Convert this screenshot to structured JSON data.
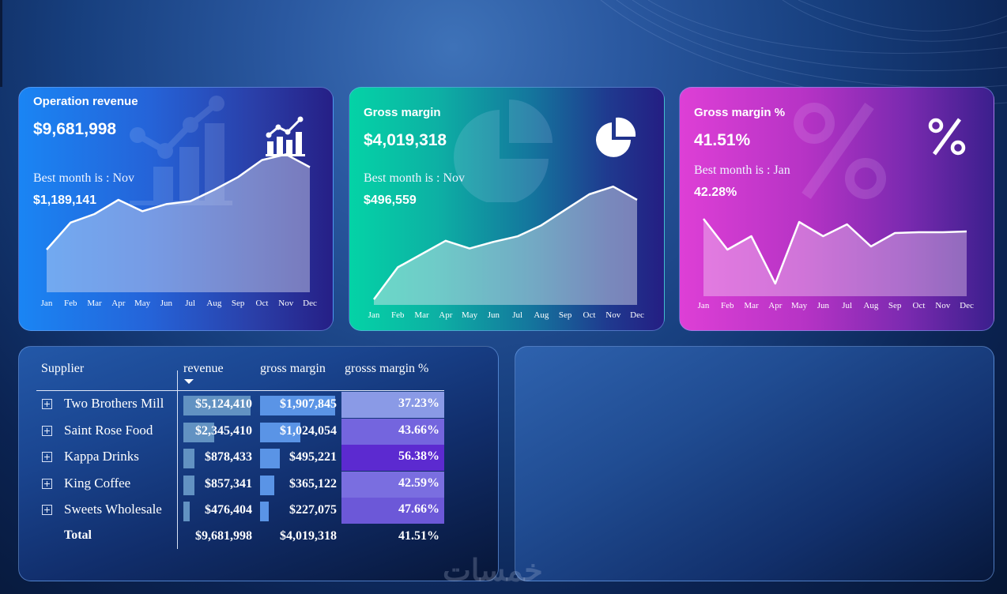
{
  "cards": {
    "revenue": {
      "title": "Operation revenue",
      "value": "$9,681,998",
      "best_label": "Best month is : Nov",
      "best_value": "$1,189,141",
      "icon": "bar-chart-icon",
      "months": [
        "Jan",
        "Feb",
        "Mar",
        "Apr",
        "May",
        "Jun",
        "Jul",
        "Aug",
        "Sep",
        "Oct",
        "Nov",
        "Dec"
      ],
      "series": [
        0.3,
        0.49,
        0.55,
        0.65,
        0.57,
        0.62,
        0.64,
        0.72,
        0.81,
        0.93,
        0.97,
        0.88
      ]
    },
    "gross_margin": {
      "title": "Gross margin",
      "value": "$4,019,318",
      "best_label": "Best month is : Nov",
      "best_value": "$496,559",
      "icon": "pie-chart-icon",
      "months": [
        "Jan",
        "Feb",
        "Mar",
        "Apr",
        "May",
        "Jun",
        "Jul",
        "Aug",
        "Sep",
        "Oct",
        "Nov",
        "Dec"
      ],
      "series": [
        0.05,
        0.34,
        0.46,
        0.58,
        0.51,
        0.57,
        0.62,
        0.72,
        0.86,
        1.0,
        1.07,
        0.95
      ]
    },
    "gross_margin_pct": {
      "title": "Gross margin %",
      "value": "41.51%",
      "best_label": "Best month is : Jan",
      "best_value": "42.28%",
      "icon": "percent-icon",
      "months": [
        "Jan",
        "Feb",
        "Mar",
        "Apr",
        "May",
        "Jun",
        "Jul",
        "Aug",
        "Sep",
        "Oct",
        "Nov",
        "Dec"
      ],
      "series": [
        0.98,
        0.59,
        0.76,
        0.16,
        0.94,
        0.76,
        0.91,
        0.63,
        0.8,
        0.81,
        0.81,
        0.82
      ]
    }
  },
  "table": {
    "columns": {
      "supplier": "Supplier",
      "revenue": "revenue",
      "gross_margin": "gross margin",
      "gross_margin_pct": "grosss margin %"
    },
    "rows": [
      {
        "supplier": "Two Brothers Mill",
        "revenue": "$5,124,410",
        "gross_margin": "$1,907,845",
        "gm_pct": "37.23%",
        "rev_ratio": 1.0,
        "gm_ratio": 1.0,
        "pct_color": "#8a9ae6"
      },
      {
        "supplier": "Saint Rose Food",
        "revenue": "$2,345,410",
        "gross_margin": "$1,024,054",
        "gm_pct": "43.66%",
        "rev_ratio": 0.46,
        "gm_ratio": 0.54,
        "pct_color": "#7465de"
      },
      {
        "supplier": "Kappa Drinks",
        "revenue": "$878,433",
        "gross_margin": "$495,221",
        "gm_pct": "56.38%",
        "rev_ratio": 0.17,
        "gm_ratio": 0.26,
        "pct_color": "#5c2ad0"
      },
      {
        "supplier": "King Coffee",
        "revenue": "$857,341",
        "gross_margin": "$365,122",
        "gm_pct": "42.59%",
        "rev_ratio": 0.17,
        "gm_ratio": 0.19,
        "pct_color": "#7a6ee0"
      },
      {
        "supplier": "Sweets Wholesale",
        "revenue": "$476,404",
        "gross_margin": "$227,075",
        "gm_pct": "47.66%",
        "rev_ratio": 0.09,
        "gm_ratio": 0.12,
        "pct_color": "#6c58d8"
      }
    ],
    "total": {
      "label": "Total",
      "revenue": "$9,681,998",
      "gross_margin": "$4,019,318",
      "gm_pct": "41.51%"
    }
  },
  "brand": "خمسات"
}
